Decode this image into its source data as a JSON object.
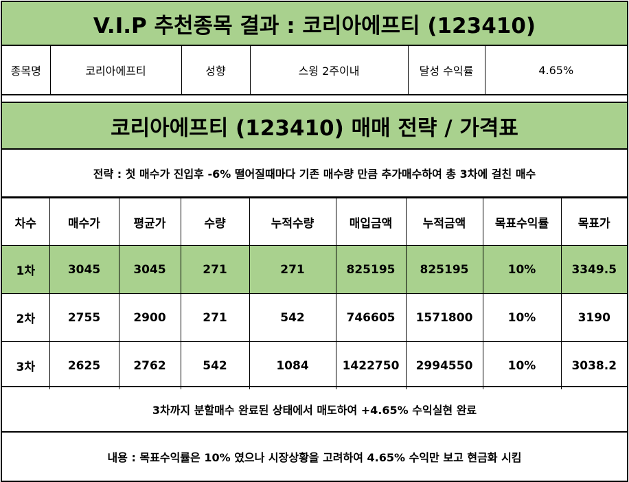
{
  "header": {
    "title": "V.I.P 추천종목 결과 : 코리아에프티 (123410)"
  },
  "info": {
    "stock_label": "종목명",
    "stock_value": "코리아에프티",
    "style_label": "성향",
    "style_value": "스윙 2주이내",
    "return_label": "달성 수익률",
    "return_value": "4.65%"
  },
  "strategy": {
    "title": "코리아에프티 (123410) 매매 전략 / 가격표",
    "description": "전략 : 첫 매수가 진입후 -6% 떨어질때마다 기존 매수량 만큼 추가매수하여 총 3차에 걸친 매수"
  },
  "price_table": {
    "headers": [
      "차수",
      "매수가",
      "평균가",
      "수량",
      "누적수량",
      "매입금액",
      "누적금액",
      "목표수익률",
      "목표가"
    ],
    "rows": [
      [
        "1차",
        "3045",
        "3045",
        "271",
        "271",
        "825195",
        "825195",
        "10%",
        "3349.5"
      ],
      [
        "2차",
        "2755",
        "2900",
        "271",
        "542",
        "746605",
        "1571800",
        "10%",
        "3190"
      ],
      [
        "3차",
        "2625",
        "2762",
        "542",
        "1084",
        "1422750",
        "2994550",
        "10%",
        "3038.2"
      ]
    ]
  },
  "result": {
    "text": "3차까지 분할매수 완료된 상태에서 매도하여 +4.65% 수익실현 완료"
  },
  "note": {
    "text": "내용 : 목표수익률은 10% 였으나 시장상황을 고려하여 4.65% 수익만 보고 현금화 시킴"
  },
  "colors": {
    "highlight_green": "#a9d18e",
    "border": "#000000"
  }
}
